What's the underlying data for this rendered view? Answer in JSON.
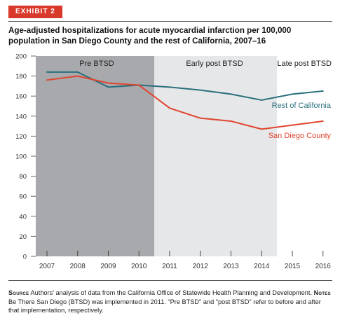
{
  "exhibit": {
    "label": "EXHIBIT 2"
  },
  "title": "Age-adjusted hospitalizations for acute myocardial infarction per 100,000 population in San Diego County and the rest of California, 2007–16",
  "chart_data": {
    "type": "line",
    "x": [
      "2007",
      "2008",
      "2009",
      "2010",
      "2011",
      "2012",
      "2013",
      "2014",
      "2015",
      "2016"
    ],
    "ylim": [
      0,
      200
    ],
    "yticks": [
      "0",
      "20",
      "40",
      "60",
      "80",
      "100",
      "120",
      "140",
      "160",
      "180",
      "200"
    ],
    "grid": false,
    "series": [
      {
        "name": "Rest of California",
        "color": "#2a6f7d",
        "values": [
          184,
          184,
          169,
          171,
          169,
          166,
          162,
          156,
          162,
          165
        ]
      },
      {
        "name": "San Diego County",
        "color": "#e0452f",
        "values": [
          176,
          180,
          173,
          171,
          148,
          138,
          135,
          127,
          131,
          135
        ]
      }
    ],
    "periods": [
      {
        "label": "Pre BTSD",
        "from": "2007",
        "to": "2010",
        "color": "#a7a9ac"
      },
      {
        "label": "Early post BTSD",
        "from": "2011",
        "to": "2014",
        "color": "#e6e7e8"
      },
      {
        "label": "Late post BTSD",
        "from": "2015",
        "to": "2016",
        "color": "#ffffff"
      }
    ]
  },
  "footnote": {
    "source_label": "Source",
    "source_text": "Authors' analysis of data from the California Office of Statewide Health Planning and Development.",
    "notes_label": "Notes",
    "notes_text": "Be There San Diego (BTSD) was implemented in 2011. \"Pre BTSD\" and \"post BTSD\" refer to before and after that implementation, respectively."
  }
}
